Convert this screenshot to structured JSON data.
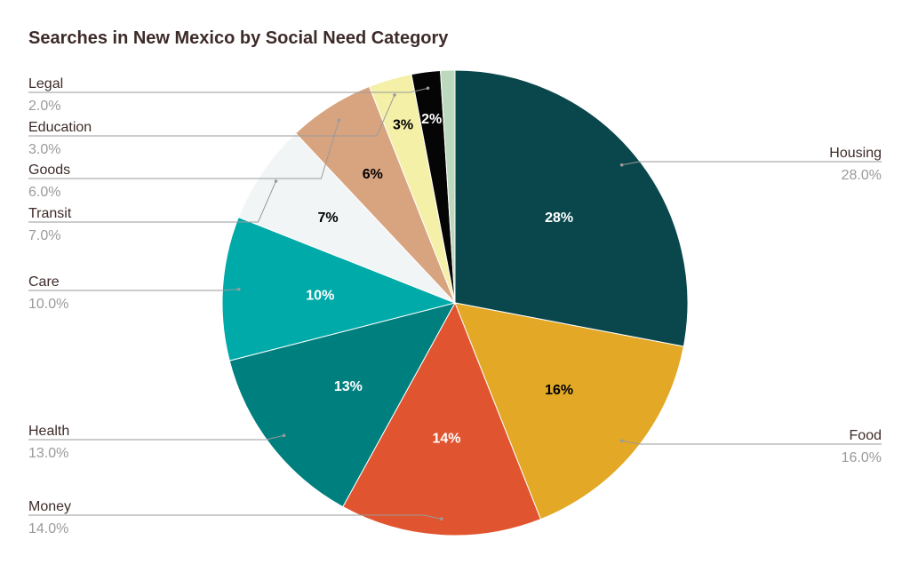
{
  "chart_data": {
    "type": "pie",
    "title": "Searches in New Mexico by Social Need Category",
    "slices": [
      {
        "label": "Housing",
        "value": 28.0,
        "value_text": "28.0%",
        "pct_label": "28%",
        "color": "#0a474c",
        "label_color": "#ffffff"
      },
      {
        "label": "Food",
        "value": 16.0,
        "value_text": "16.0%",
        "pct_label": "16%",
        "color": "#e3a826",
        "label_color": "#000000"
      },
      {
        "label": "Money",
        "value": 14.0,
        "value_text": "14.0%",
        "pct_label": "14%",
        "color": "#e0552f",
        "label_color": "#ffffff"
      },
      {
        "label": "Health",
        "value": 13.0,
        "value_text": "13.0%",
        "pct_label": "13%",
        "color": "#007f7f",
        "label_color": "#ffffff"
      },
      {
        "label": "Care",
        "value": 10.0,
        "value_text": "10.0%",
        "pct_label": "10%",
        "color": "#00aaa9",
        "label_color": "#ffffff"
      },
      {
        "label": "Transit",
        "value": 7.0,
        "value_text": "7.0%",
        "pct_label": "7%",
        "color": "#f2f5f6",
        "label_color": "#000000"
      },
      {
        "label": "Goods",
        "value": 6.0,
        "value_text": "6.0%",
        "pct_label": "6%",
        "color": "#d8a47f",
        "label_color": "#000000"
      },
      {
        "label": "Education",
        "value": 3.0,
        "value_text": "3.0%",
        "pct_label": "3%",
        "color": "#f4f0a8",
        "label_color": "#000000"
      },
      {
        "label": "Legal",
        "value": 2.0,
        "value_text": "2.0%",
        "pct_label": "2%",
        "color": "#050505",
        "label_color": "#ffffff"
      },
      {
        "label": "",
        "value": 1.0,
        "value_text": "",
        "pct_label": "",
        "color": "#bcd9bd",
        "label_color": "#000000"
      }
    ]
  }
}
